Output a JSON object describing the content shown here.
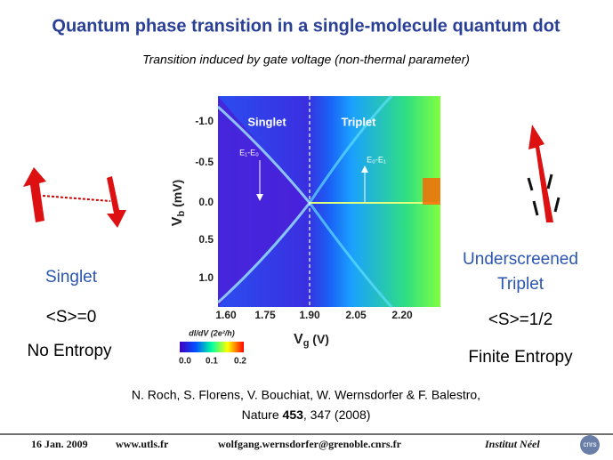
{
  "title": "Quantum phase transition in a single-molecule quantum dot",
  "subtitle": "Transition induced by gate voltage (non-thermal parameter)",
  "plot": {
    "y_ticks": [
      "-1.0",
      "-0.5",
      "0.0",
      "0.5",
      "1.0"
    ],
    "x_ticks": [
      "1.60",
      "1.75",
      "1.90",
      "2.05",
      "2.20"
    ],
    "y_label": {
      "main": "V",
      "sub": "b",
      "unit": " (mV)"
    },
    "x_label": {
      "main": "V",
      "sub": "g",
      "unit": " (V)"
    },
    "regions": [
      "Singlet",
      "Triplet"
    ],
    "annotations": [
      "E₁-E₀",
      "E₀-E₁"
    ],
    "colorbar": {
      "label": "dI/dV (2e²/h)",
      "ticks": [
        "0.0",
        "0.1",
        "0.2"
      ]
    }
  },
  "left": {
    "name": "Singlet",
    "spin": "<S>=0",
    "entropy": "No Entropy"
  },
  "right": {
    "name": [
      "Underscreened",
      "Triplet"
    ],
    "spin": "<S>=1/2",
    "entropy": "Finite Entropy"
  },
  "reference": {
    "authors": "N. Roch, S. Florens, V. Bouchiat, W. Wernsdorfer & F. Balestro,",
    "journal": "Nature ",
    "volume": "453",
    "pages": ", 347 (2008)"
  },
  "footer": {
    "date": "16 Jan. 2009",
    "site": "www.utls.fr",
    "email": "wolfgang.wernsdorfer@grenoble.cnrs.fr",
    "institute": "Institut Néel",
    "logo": "cnrs"
  }
}
